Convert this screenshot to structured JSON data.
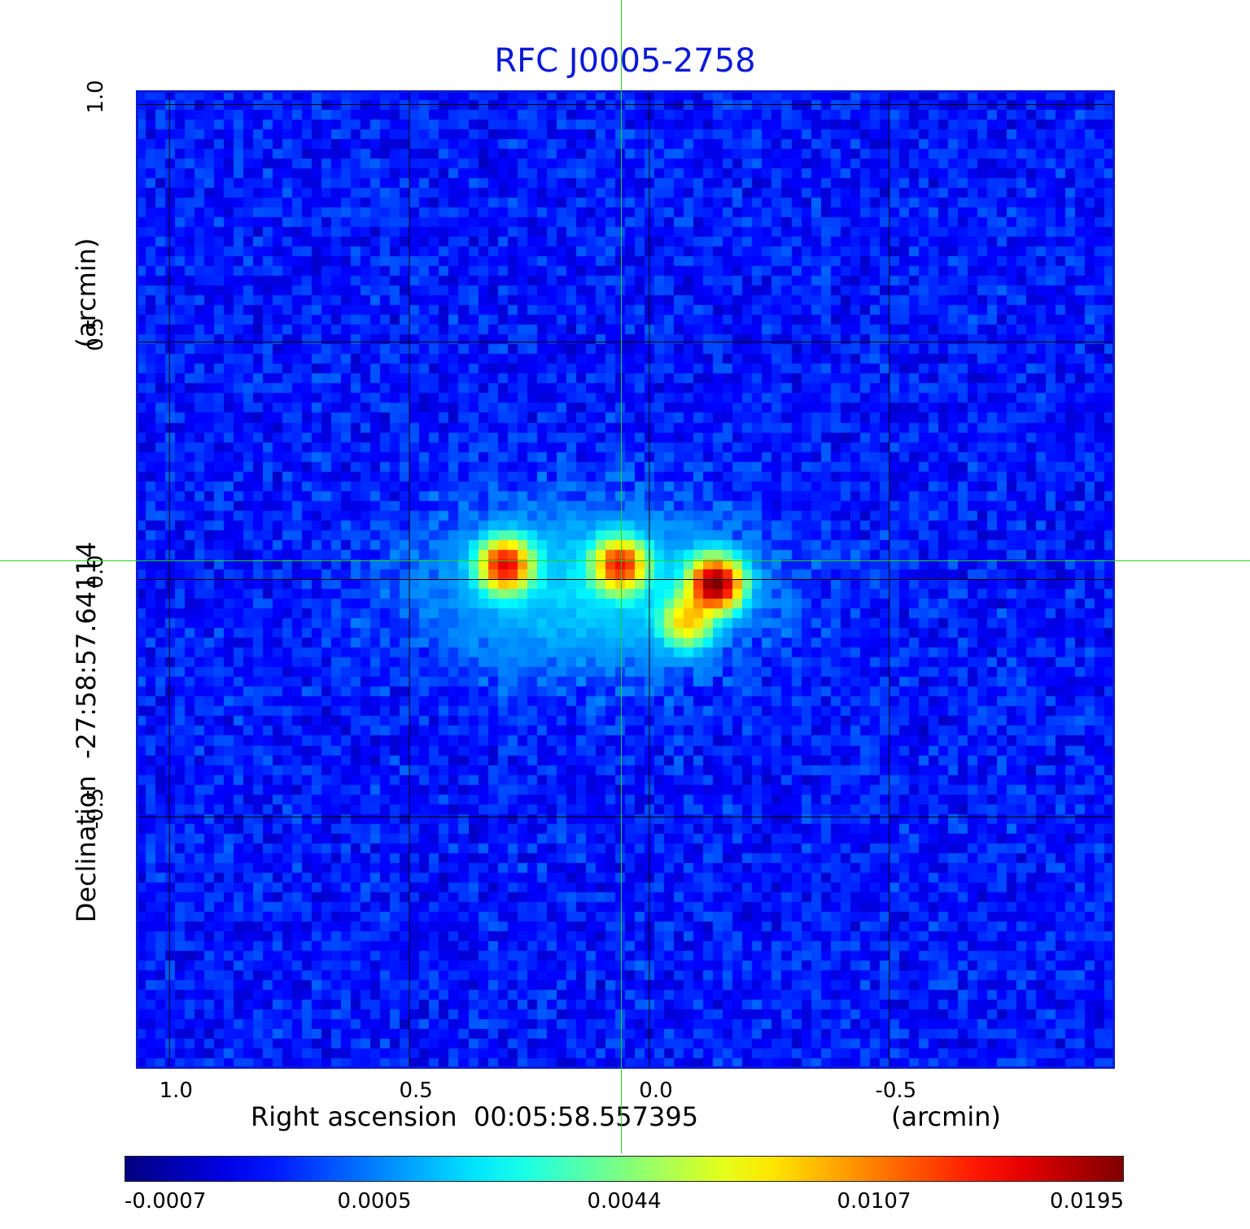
{
  "chart_data": {
    "type": "heatmap",
    "title": "RFC J0005-2758",
    "xlabel": "Right ascension  00:05:58.557395",
    "xunit": "(arcmin)",
    "ylabel": "Declination  -27:58:57.64114",
    "yunit": "(arcmin)",
    "xlim": [
      1.07,
      -0.97
    ],
    "ylim": [
      -1.03,
      1.03
    ],
    "x_ticks": [
      1.0,
      0.5,
      0.0,
      -0.5
    ],
    "x_tick_labels": [
      "1.0",
      "0.5",
      "0.0",
      "-0.5"
    ],
    "y_ticks": [
      1.0,
      0.5,
      0.0,
      -0.5
    ],
    "y_tick_labels": [
      "1.0",
      "0.5",
      "0.0",
      "-0.5"
    ],
    "grid": true,
    "crosshair": {
      "x": 0.06,
      "y": 0.04
    },
    "colorbar": {
      "colormap": "jet",
      "tick_labels": [
        "-0.0007",
        "0.0005",
        "0.0044",
        "0.0107",
        "0.0195"
      ],
      "tick_values": [
        -0.0007,
        0.0005,
        0.0044,
        0.0107,
        0.0195
      ]
    },
    "sources": [
      {
        "x": 0.3,
        "y": 0.03,
        "peak": 0.015
      },
      {
        "x": 0.06,
        "y": 0.03,
        "peak": 0.0135
      },
      {
        "x": -0.14,
        "y": -0.01,
        "peak": 0.0195
      },
      {
        "x": -0.08,
        "y": -0.09,
        "peak": 0.008
      }
    ],
    "extended_emission": {
      "x": 0.12,
      "y": -0.02,
      "peak": 0.0018
    },
    "noise_level": 0.0003
  },
  "colors": {
    "title": "#0b1ad6",
    "frame": "#0b1ad6",
    "crosshair": "#1fd41f",
    "grid": "#000000"
  }
}
